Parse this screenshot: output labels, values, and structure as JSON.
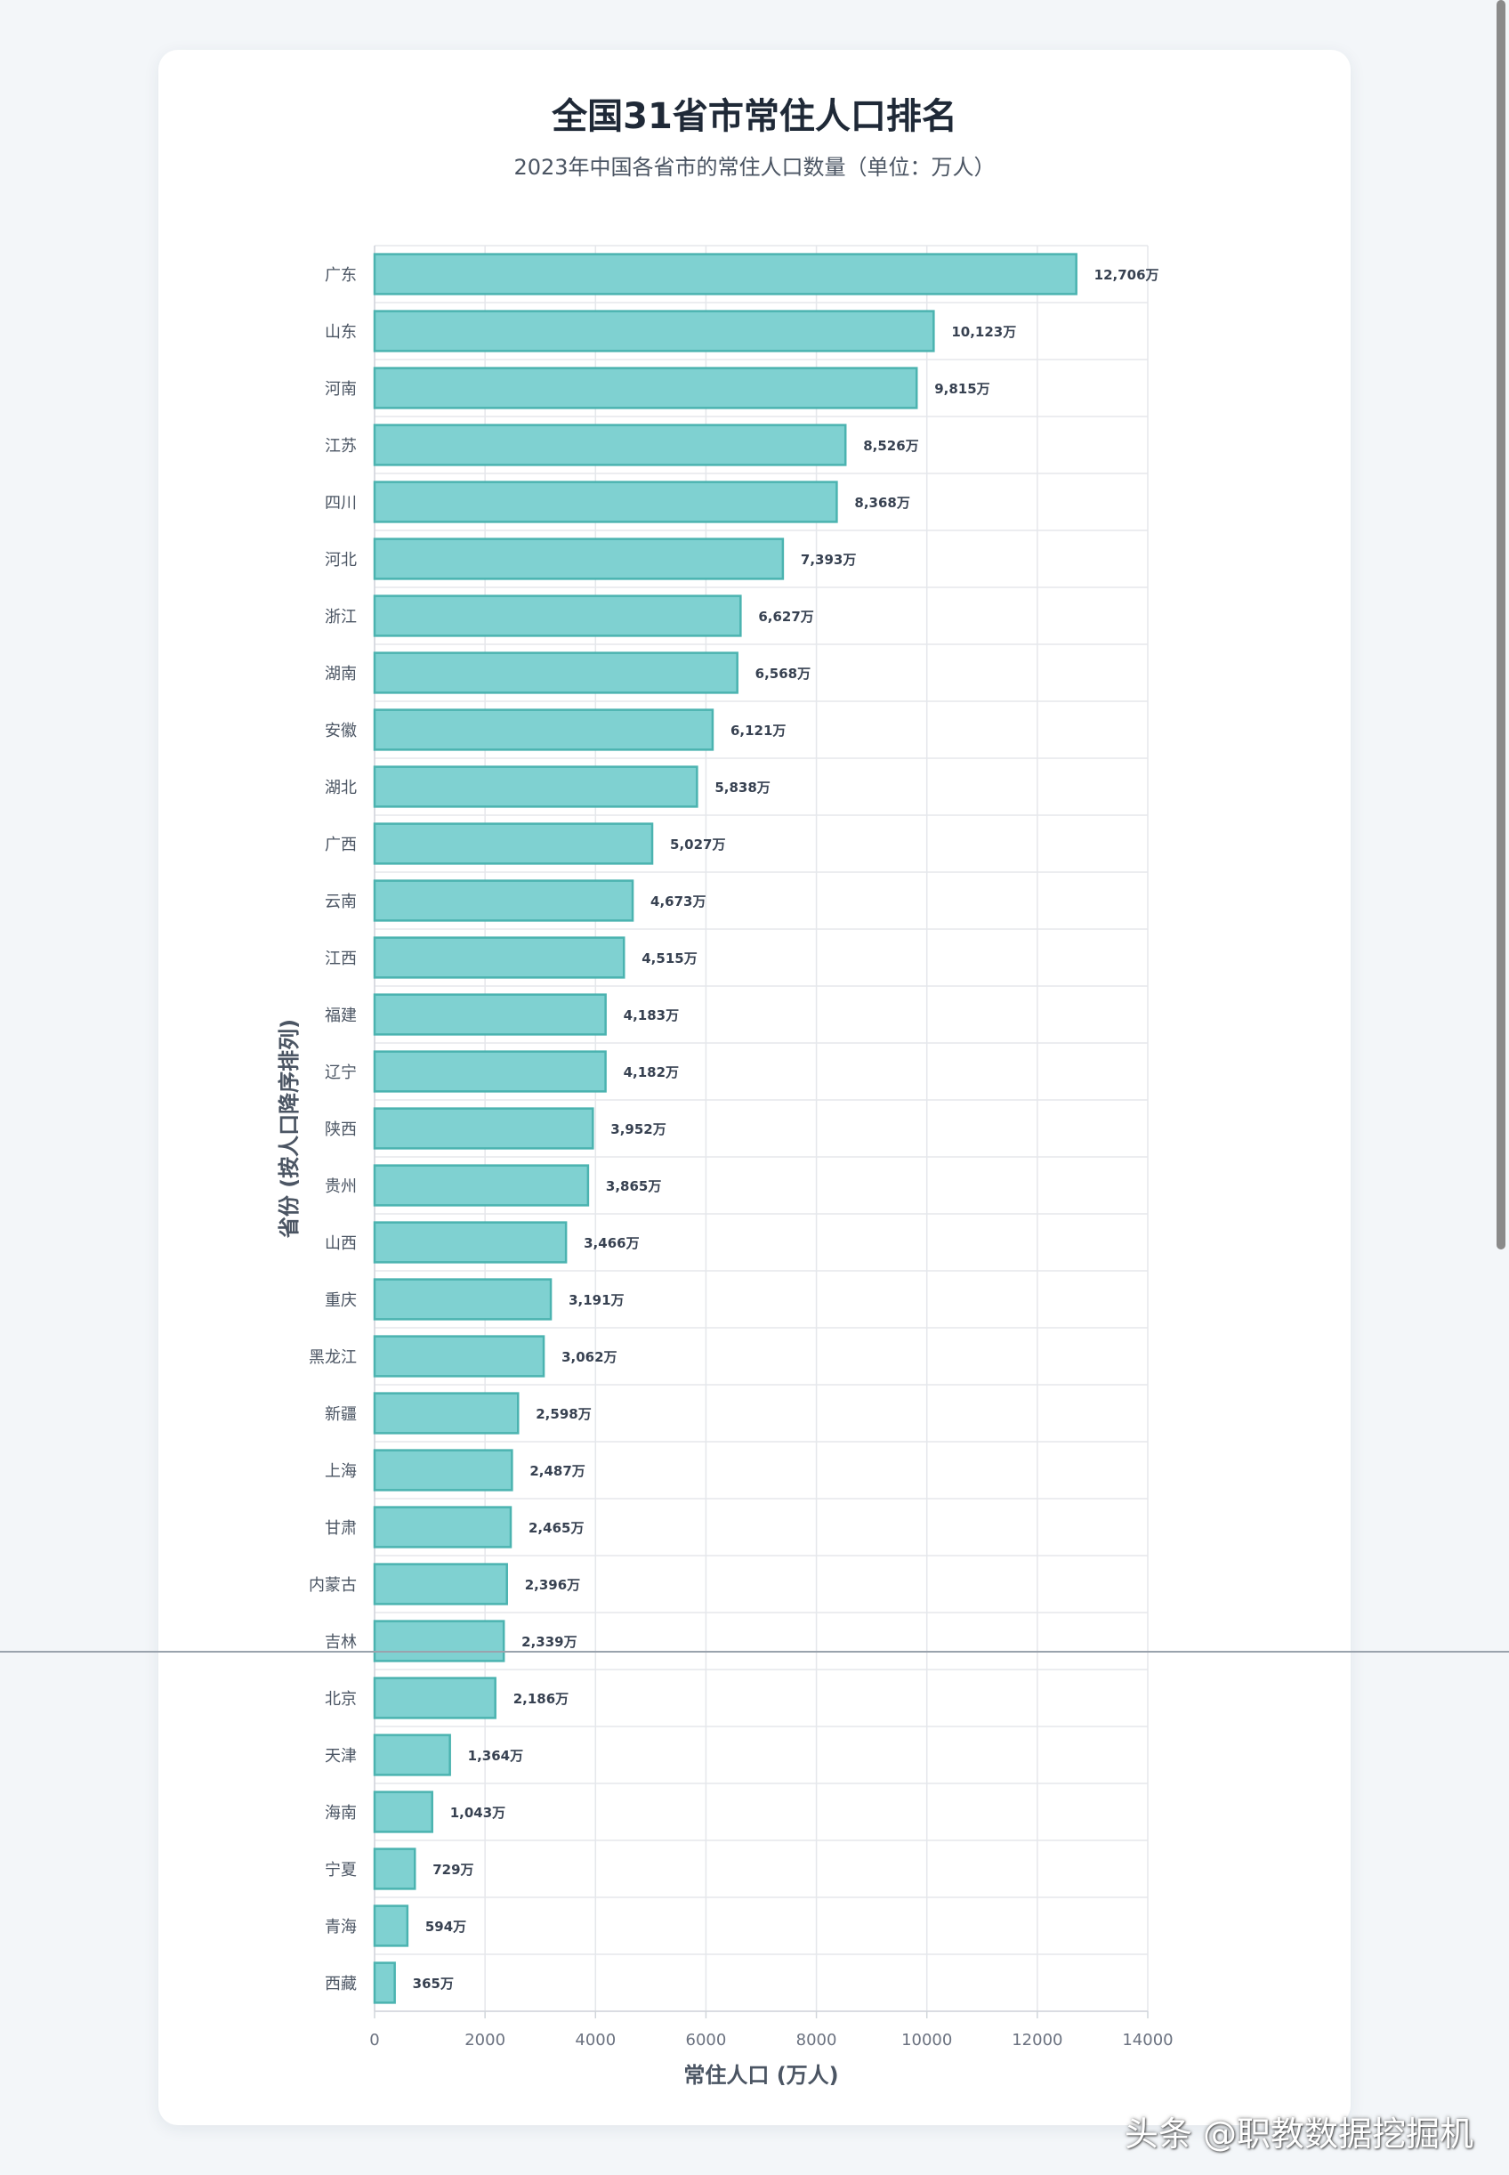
{
  "chart_data": {
    "type": "bar",
    "orientation": "horizontal",
    "title": "全国31省市常住人口排名",
    "subtitle": "2023年中国各省市的常住人口数量（单位：万人）",
    "xlabel": "常住人口 (万人)",
    "ylabel": "省份 (按人口降序排列)",
    "xlim": [
      0,
      14000
    ],
    "xticks": [
      0,
      2000,
      4000,
      6000,
      8000,
      10000,
      12000,
      14000
    ],
    "value_suffix": "万",
    "grid": true,
    "bar_color": "#7fd1d1",
    "bar_border_color": "#4bb3b0",
    "categories": [
      "广东",
      "山东",
      "河南",
      "江苏",
      "四川",
      "河北",
      "浙江",
      "湖南",
      "安徽",
      "湖北",
      "广西",
      "云南",
      "江西",
      "福建",
      "辽宁",
      "陕西",
      "贵州",
      "山西",
      "重庆",
      "黑龙江",
      "新疆",
      "上海",
      "甘肃",
      "内蒙古",
      "吉林",
      "北京",
      "天津",
      "海南",
      "宁夏",
      "青海",
      "西藏"
    ],
    "values": [
      12706,
      10123,
      9815,
      8526,
      8368,
      7393,
      6627,
      6568,
      6121,
      5838,
      5027,
      4673,
      4515,
      4183,
      4182,
      3952,
      3865,
      3466,
      3191,
      3062,
      2598,
      2487,
      2465,
      2396,
      2339,
      2186,
      1364,
      1043,
      729,
      594,
      365
    ]
  },
  "watermark": "头条 @职教数据挖掘机"
}
